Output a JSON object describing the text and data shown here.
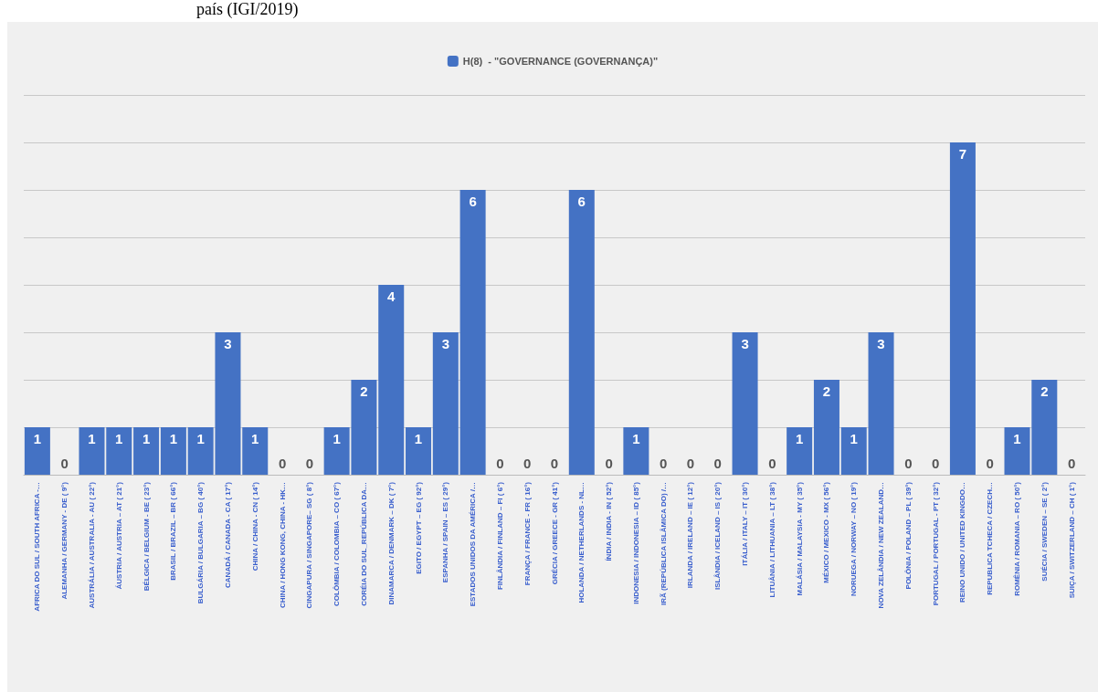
{
  "chart_data": {
    "type": "bar",
    "annotations": [
      "país (IGI/2019)"
    ],
    "categories": [
      "AFRICA DO SUL / SOUTH AFRICA -…",
      "ALEMANHA / GERMANY - DE ( 9°)",
      "AUSTRÁLIA / AUSTRALIA - AU ( 22°)",
      "ÁUSTRIA / AUSTRIA – AT ( 21°)",
      "BÉLGICA / BELGIUM - BE ( 23°)",
      "BRASIL / BRAZIL – BR ( 66°)",
      "BULGÁRIA / BULGARIA – BG ( 40°)",
      "CANADÁ / CANADA - CA ( 17°)",
      "CHINA / CHINA - CN ( 14°)",
      "CHINA / HONG KONG, CHINA - HK…",
      "CINGAPURA / SINGAPORE– SG ( 8°)",
      "COLÔMBIA / COLOMBIA – CO ( 67°)",
      "CORÉIA DO SUL_REPÚBLICA DA…",
      "DINAMARCA / DENMARK – DK ( 7°)",
      "EGITO / EGYPT – EG ( 92°)",
      "ESPANHA / SPAIN – ES ( 29°)",
      "ESTADOS UNIDOS DA AMÉRICA /…",
      "FINLÂNDIA / FINLAND – FI ( 6°)",
      "FRANÇA / FRANCE - FR ( 16°)",
      "GRÉCIA / GREECE - GR ( 41°)",
      "HOLANDA / NETHERLANDS - NL…",
      "ÍNDIA / INDIA - IN ( 52°)",
      "INDONESIA / INDONESIA – ID ( 85°)",
      "IRÃ (REPÚBLICA ISLÂMICA DO) /…",
      "IRLANDA / IRELAND – IE ( 12°)",
      "ISLÂNDIA / ICELAND – IS ( 20°)",
      "ITÁLIA / ITALY – IT ( 30°)",
      "LITUÂNIA / LITHUANIA – LT ( 38°)",
      "MALÁSIA / MALAYSIA - MY ( 35°)",
      "MÉXICO / MEXICO - MX ( 56°)",
      "NORUEGA / NORWAY – NO ( 19°)",
      "NOVA ZELÂNDIA / NEW ZEALAND…",
      "POLÔNIA / POLAND – PL ( 39°)",
      "PORTUGAL / PORTUGAL - PT ( 32°)",
      "REINO UNIDO / UNITED KINGDO…",
      "REPUBLICA TCHECA / CZECH…",
      "ROMÊNIA / ROMANIA – RO ( 50°)",
      "SUÉCIA / SWEDEN – SE ( 2°)",
      "SUIÇA / SWITZERLAND – CH ( 1°)"
    ],
    "series": [
      {
        "name": "H(8)  - \"GOVERNANCE (GOVERNANÇA)\"",
        "color": "#4472c4",
        "values": [
          1,
          0,
          1,
          1,
          1,
          1,
          1,
          3,
          1,
          0,
          0,
          1,
          2,
          4,
          1,
          3,
          6,
          0,
          0,
          0,
          6,
          0,
          1,
          0,
          0,
          0,
          3,
          0,
          1,
          2,
          1,
          3,
          0,
          0,
          7,
          0,
          1,
          2,
          0
        ]
      }
    ],
    "ylim": [
      0,
      8
    ],
    "yticks": [
      {
        "value": 0,
        "label": null
      },
      {
        "value": 1,
        "label": null
      },
      {
        "value": 2,
        "label": null
      },
      {
        "value": 3,
        "label": null
      },
      {
        "value": 4,
        "label": null
      },
      {
        "value": 5,
        "label": null
      },
      {
        "value": 6,
        "label": null
      },
      {
        "value": 7,
        "label": null
      },
      {
        "value": 8,
        "label": null
      }
    ],
    "tick_labels": "x",
    "grid": "y",
    "legend": "top",
    "data_labels": true
  }
}
